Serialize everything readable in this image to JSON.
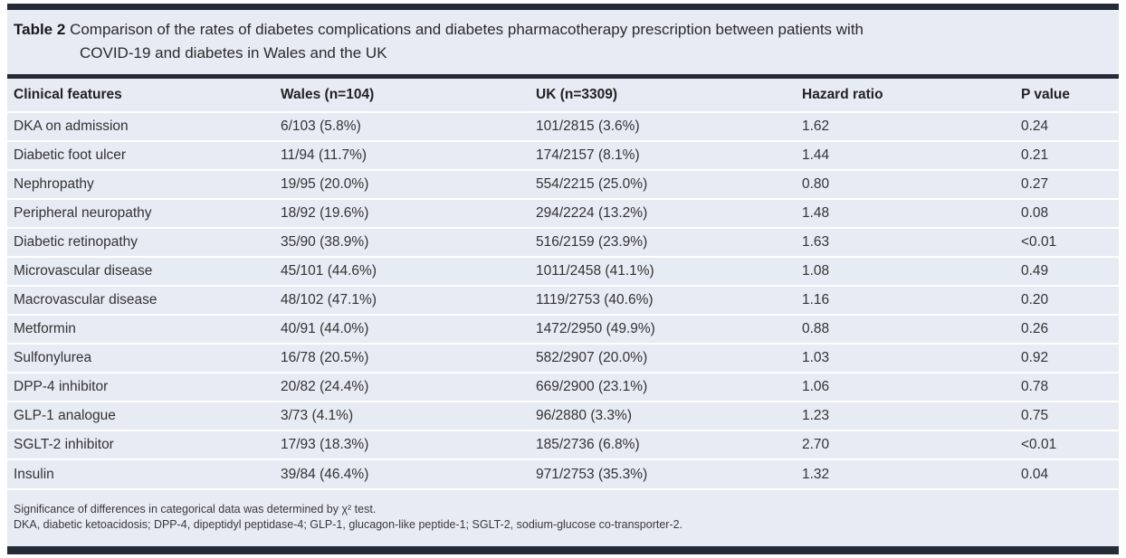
{
  "caption": {
    "label": "Table 2",
    "title_line1": "Comparison of the rates of diabetes complications and diabetes pharmacotherapy prescription between patients with",
    "title_line2": "COVID-19 and diabetes in Wales and the UK"
  },
  "table": {
    "headers": [
      "Clinical features",
      "Wales (n=104)",
      "UK (n=3309)",
      "Hazard ratio",
      "P value"
    ],
    "rows": [
      [
        "DKA on admission",
        "6/103 (5.8%)",
        "101/2815 (3.6%)",
        "1.62",
        "0.24"
      ],
      [
        "Diabetic foot ulcer",
        "11/94 (11.7%)",
        "174/2157 (8.1%)",
        "1.44",
        "0.21"
      ],
      [
        "Nephropathy",
        "19/95 (20.0%)",
        "554/2215 (25.0%)",
        "0.80",
        "0.27"
      ],
      [
        "Peripheral neuropathy",
        "18/92 (19.6%)",
        "294/2224 (13.2%)",
        "1.48",
        "0.08"
      ],
      [
        "Diabetic retinopathy",
        "35/90 (38.9%)",
        "516/2159 (23.9%)",
        "1.63",
        "<0.01"
      ],
      [
        "Microvascular disease",
        "45/101 (44.6%)",
        "1011/2458 (41.1%)",
        "1.08",
        "0.49"
      ],
      [
        "Macrovascular disease",
        "48/102 (47.1%)",
        "1119/2753 (40.6%)",
        "1.16",
        "0.20"
      ],
      [
        "Metformin",
        "40/91 (44.0%)",
        "1472/2950 (49.9%)",
        "0.88",
        "0.26"
      ],
      [
        "Sulfonylurea",
        "16/78 (20.5%)",
        "582/2907 (20.0%)",
        "1.03",
        "0.92"
      ],
      [
        "DPP-4 inhibitor",
        "20/82 (24.4%)",
        "669/2900 (23.1%)",
        "1.06",
        "0.78"
      ],
      [
        "GLP-1 analogue",
        "3/73 (4.1%)",
        "96/2880 (3.3%)",
        "1.23",
        "0.75"
      ],
      [
        "SGLT-2 inhibitor",
        "17/93 (18.3%)",
        "185/2736 (6.8%)",
        "2.70",
        "<0.01"
      ],
      [
        "Insulin",
        "39/84 (46.4%)",
        "971/2753 (35.3%)",
        "1.32",
        "0.04"
      ]
    ]
  },
  "footnotes": [
    "Significance of differences in categorical data was determined by χ² test.",
    "DKA, diabetic ketoacidosis; DPP-4, dipeptidyl peptidase-4; GLP-1, glucagon-like peptide-1; SGLT-2, sodium-glucose co-transporter-2."
  ],
  "colors": {
    "panel_background": "#e7ebf4",
    "rule": "#252b36",
    "row_separator": "#ffffff"
  }
}
